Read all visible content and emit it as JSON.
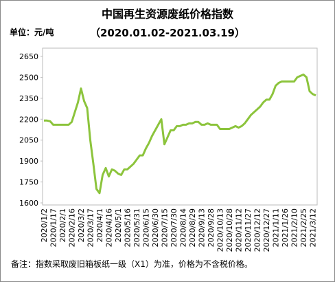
{
  "chart_data": {
    "type": "line",
    "title": "中国再生资源废纸价格指数",
    "subtitle": "（2020.01.02-2021.03.19）",
    "y_label": "单位：元/吨",
    "note": "备注：指数采取废旧箱板纸一级（X1）为准，价格为不含税价格。",
    "categories": [
      "2020/1/2",
      null,
      null,
      "2020/1/17",
      null,
      null,
      "2020/2/1",
      null,
      null,
      "2020/2/16",
      null,
      null,
      "2020/3/2",
      null,
      null,
      "2020/3/17",
      null,
      null,
      "2020/4/1",
      null,
      null,
      "2020/4/16",
      null,
      null,
      "2020/5/1",
      null,
      null,
      "2020/5/16",
      null,
      null,
      "2020/5/31",
      null,
      null,
      "2020/6/15",
      null,
      null,
      "2020/6/30",
      null,
      null,
      "2020/7/15",
      null,
      null,
      "2020/7/30",
      null,
      null,
      "2020/8/14",
      null,
      null,
      "2020/8/29",
      null,
      null,
      "2020/9/13",
      null,
      null,
      "2020/9/28",
      null,
      null,
      "2020/10/13",
      null,
      null,
      "2020/10/28",
      null,
      null,
      "2020/11/12",
      null,
      null,
      "2020/11/27",
      null,
      null,
      "2020/12/12",
      null,
      null,
      "2020/12/27",
      null,
      null,
      "2021/1/11",
      null,
      null,
      "2021/1/26",
      null,
      null,
      "2021/2/10",
      null,
      null,
      "2021/2/25",
      null,
      null,
      "2021/3/12",
      null
    ],
    "values": [
      2190,
      2190,
      2185,
      2160,
      2160,
      2160,
      2160,
      2160,
      2160,
      2180,
      2250,
      2320,
      2420,
      2330,
      2280,
      2050,
      1880,
      1700,
      1670,
      1800,
      1850,
      1790,
      1840,
      1830,
      1810,
      1800,
      1840,
      1840,
      1860,
      1880,
      1910,
      1940,
      1940,
      1990,
      2030,
      2080,
      2120,
      2160,
      2200,
      2020,
      2070,
      2120,
      2120,
      2150,
      2150,
      2160,
      2160,
      2170,
      2170,
      2180,
      2180,
      2160,
      2160,
      2170,
      2160,
      2160,
      2160,
      2130,
      2130,
      2130,
      2130,
      2140,
      2150,
      2140,
      2150,
      2170,
      2200,
      2230,
      2250,
      2270,
      2290,
      2320,
      2340,
      2340,
      2380,
      2440,
      2460,
      2470,
      2470,
      2470,
      2470,
      2470,
      2500,
      2510,
      2520,
      2500,
      2400,
      2380,
      2370
    ],
    "color": "#8cc43c",
    "ylim": [
      1600,
      2650
    ],
    "yticks": [
      1600,
      1750,
      1900,
      2050,
      2200,
      2350,
      2500,
      2650
    ],
    "grid": false
  }
}
